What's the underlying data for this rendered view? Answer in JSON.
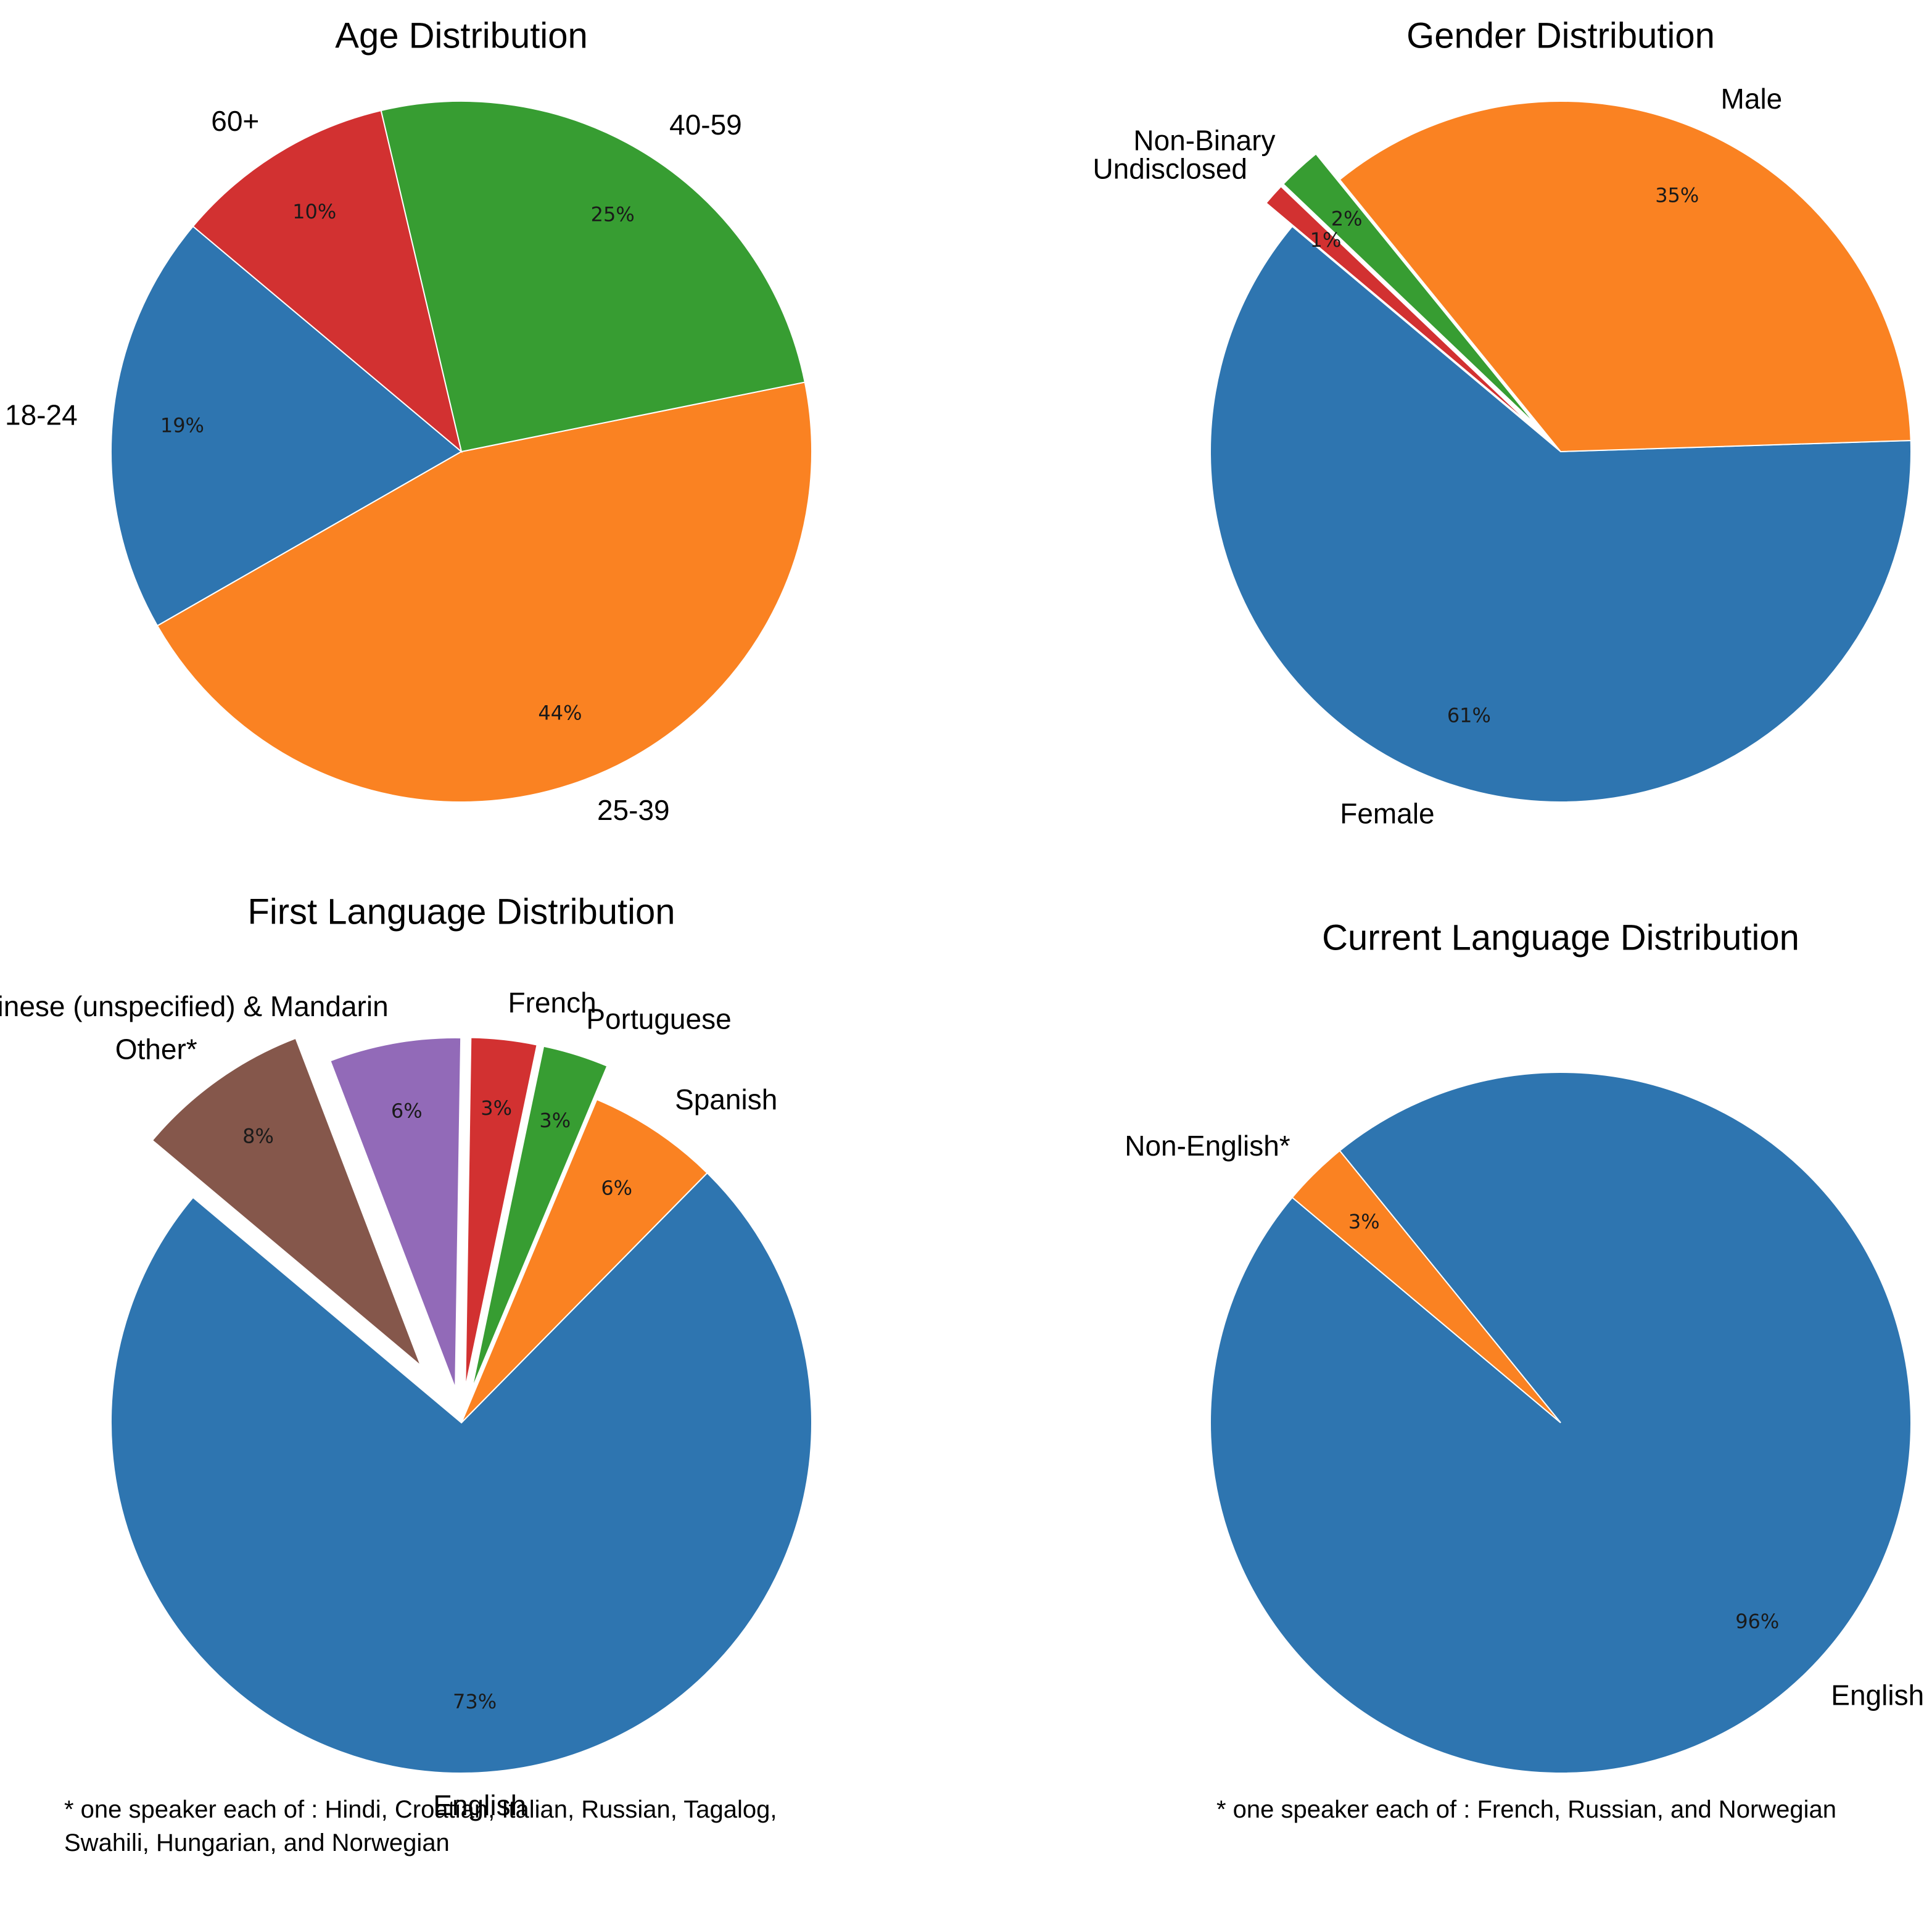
{
  "chart_data": [
    {
      "type": "pie",
      "title": "Age Distribution",
      "categories": [
        "18-24",
        "25-39",
        "40-59",
        "60+"
      ],
      "values": [
        19,
        44,
        25,
        10
      ],
      "value_labels": [
        "19%",
        "44%",
        "25%",
        "10%"
      ],
      "colors": [
        "#2e75b0",
        "#fa8222",
        "#379d32",
        "#d23131"
      ],
      "start_angle_deg": 140,
      "explode": [
        0,
        0,
        0,
        0
      ],
      "footnote": ""
    },
    {
      "type": "pie",
      "title": "Gender Distribution",
      "categories": [
        "Female",
        "Male",
        "Non-Binary",
        "Undisclosed"
      ],
      "values": [
        61,
        35,
        2,
        1
      ],
      "value_labels": [
        "61%",
        "35%",
        "2%",
        "1%"
      ],
      "colors": [
        "#2e75b0",
        "#fa8222",
        "#379d32",
        "#d23131"
      ],
      "start_angle_deg": 140,
      "explode": [
        0,
        0,
        0.1,
        0.1
      ],
      "footnote": ""
    },
    {
      "type": "pie",
      "title": "First Language Distribution",
      "categories": [
        "English",
        "Spanish",
        "Portuguese",
        "French",
        "Chinese (unspecified) & Mandarin",
        "Other*"
      ],
      "values": [
        73,
        6,
        3,
        3,
        6,
        8
      ],
      "value_labels": [
        "73%",
        "6%",
        "3%",
        "3%",
        "6%",
        "8%"
      ],
      "colors": [
        "#2e75b0",
        "#fa8222",
        "#379d32",
        "#d23131",
        "#926ab8",
        "#85574b"
      ],
      "start_angle_deg": 140,
      "explode": [
        0,
        0,
        0.1,
        0.1,
        0.1,
        0.2
      ],
      "footnote": "* one speaker each of : Hindi, Croatian, Italian, Russian, Tagalog,\nSwahili, Hungarian, and Norwegian"
    },
    {
      "type": "pie",
      "title": "Current Language Distribution",
      "categories": [
        "English",
        "Non-English*"
      ],
      "values": [
        96,
        3
      ],
      "value_labels": [
        "96%",
        "3%"
      ],
      "colors": [
        "#2e75b0",
        "#fa8222"
      ],
      "start_angle_deg": 140,
      "explode": [
        0,
        0
      ],
      "footnote": "* one speaker each of : French, Russian, and Norwegian"
    }
  ]
}
